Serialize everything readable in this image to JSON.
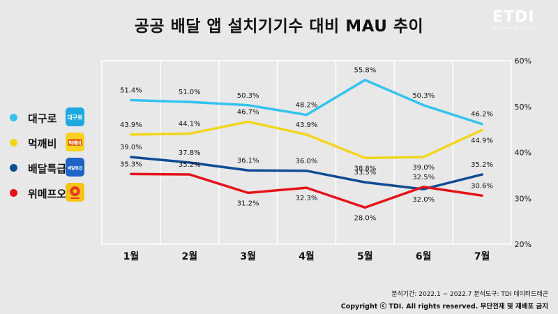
{
  "title": "공공 배달 앱 설치기기수 대비 MAU 추이",
  "logo": {
    "mark": "ETDI",
    "sub": "THE DATA INCUBATOR"
  },
  "legend": [
    {
      "name": "대구로",
      "color": "#35c2ee",
      "icon": "daeguro-app-icon",
      "icon_text": "대구로"
    },
    {
      "name": "먹깨비",
      "color": "#f3d51c",
      "icon": "meokkaebi-app-icon",
      "icon_text": "먹깨비"
    },
    {
      "name": "배달특급",
      "color": "#0e4c93",
      "icon": "baedal-teukgeup-app-icon",
      "icon_text": "배달특급"
    },
    {
      "name": "위메프오",
      "color": "#e4121b",
      "icon": "wemakepriceo-app-icon",
      "icon_text": ""
    }
  ],
  "footer": {
    "period": "분석기간: 2022.1 ~ 2022.7   분석도구: TDI 데이터드래곤",
    "copyright": "Copyright ⓒ TDI. All rights reserved. 무단전재 및 재배포 금지"
  },
  "chart_data": {
    "type": "line",
    "title": "공공 배달 앱 설치기기수 대비 MAU 추이",
    "x": [
      "1월",
      "2월",
      "3월",
      "4월",
      "5월",
      "6월",
      "7월"
    ],
    "y_ticks": [
      "20%",
      "30%",
      "40%",
      "50%",
      "60%"
    ],
    "ylim": [
      20,
      60
    ],
    "grid": "vertical",
    "legend_position": "left",
    "series": [
      {
        "name": "대구로",
        "color": "#35c2ee",
        "values": [
          51.4,
          51.0,
          50.3,
          48.2,
          55.8,
          50.3,
          46.2
        ],
        "labels": [
          "51.4%",
          "51.0%",
          "50.3%",
          "48.2%",
          "55.8%",
          "50.3%",
          "46.2%"
        ]
      },
      {
        "name": "먹깨비",
        "color": "#f3d51c",
        "values": [
          43.9,
          44.1,
          46.7,
          43.9,
          38.8,
          39.0,
          44.9
        ],
        "labels": [
          "43.9%",
          "44.1%",
          "46.7%",
          "43.9%",
          "38.8%",
          "39.0%",
          "44.9%"
        ]
      },
      {
        "name": "배달특급",
        "color": "#0e4c93",
        "values": [
          39.0,
          37.8,
          36.1,
          36.0,
          33.5,
          32.0,
          35.2
        ],
        "labels": [
          "39.0%",
          "37.8%",
          "36.1%",
          "36.0%",
          "33.5%",
          "32.0%",
          "35.2%"
        ]
      },
      {
        "name": "위메프오",
        "color": "#e4121b",
        "values": [
          35.3,
          35.2,
          31.2,
          32.3,
          28.0,
          32.5,
          30.6
        ],
        "labels": [
          "35.3%",
          "35.2%",
          "31.2%",
          "32.3%",
          "28.0%",
          "32.5%",
          "30.6%"
        ]
      }
    ]
  }
}
